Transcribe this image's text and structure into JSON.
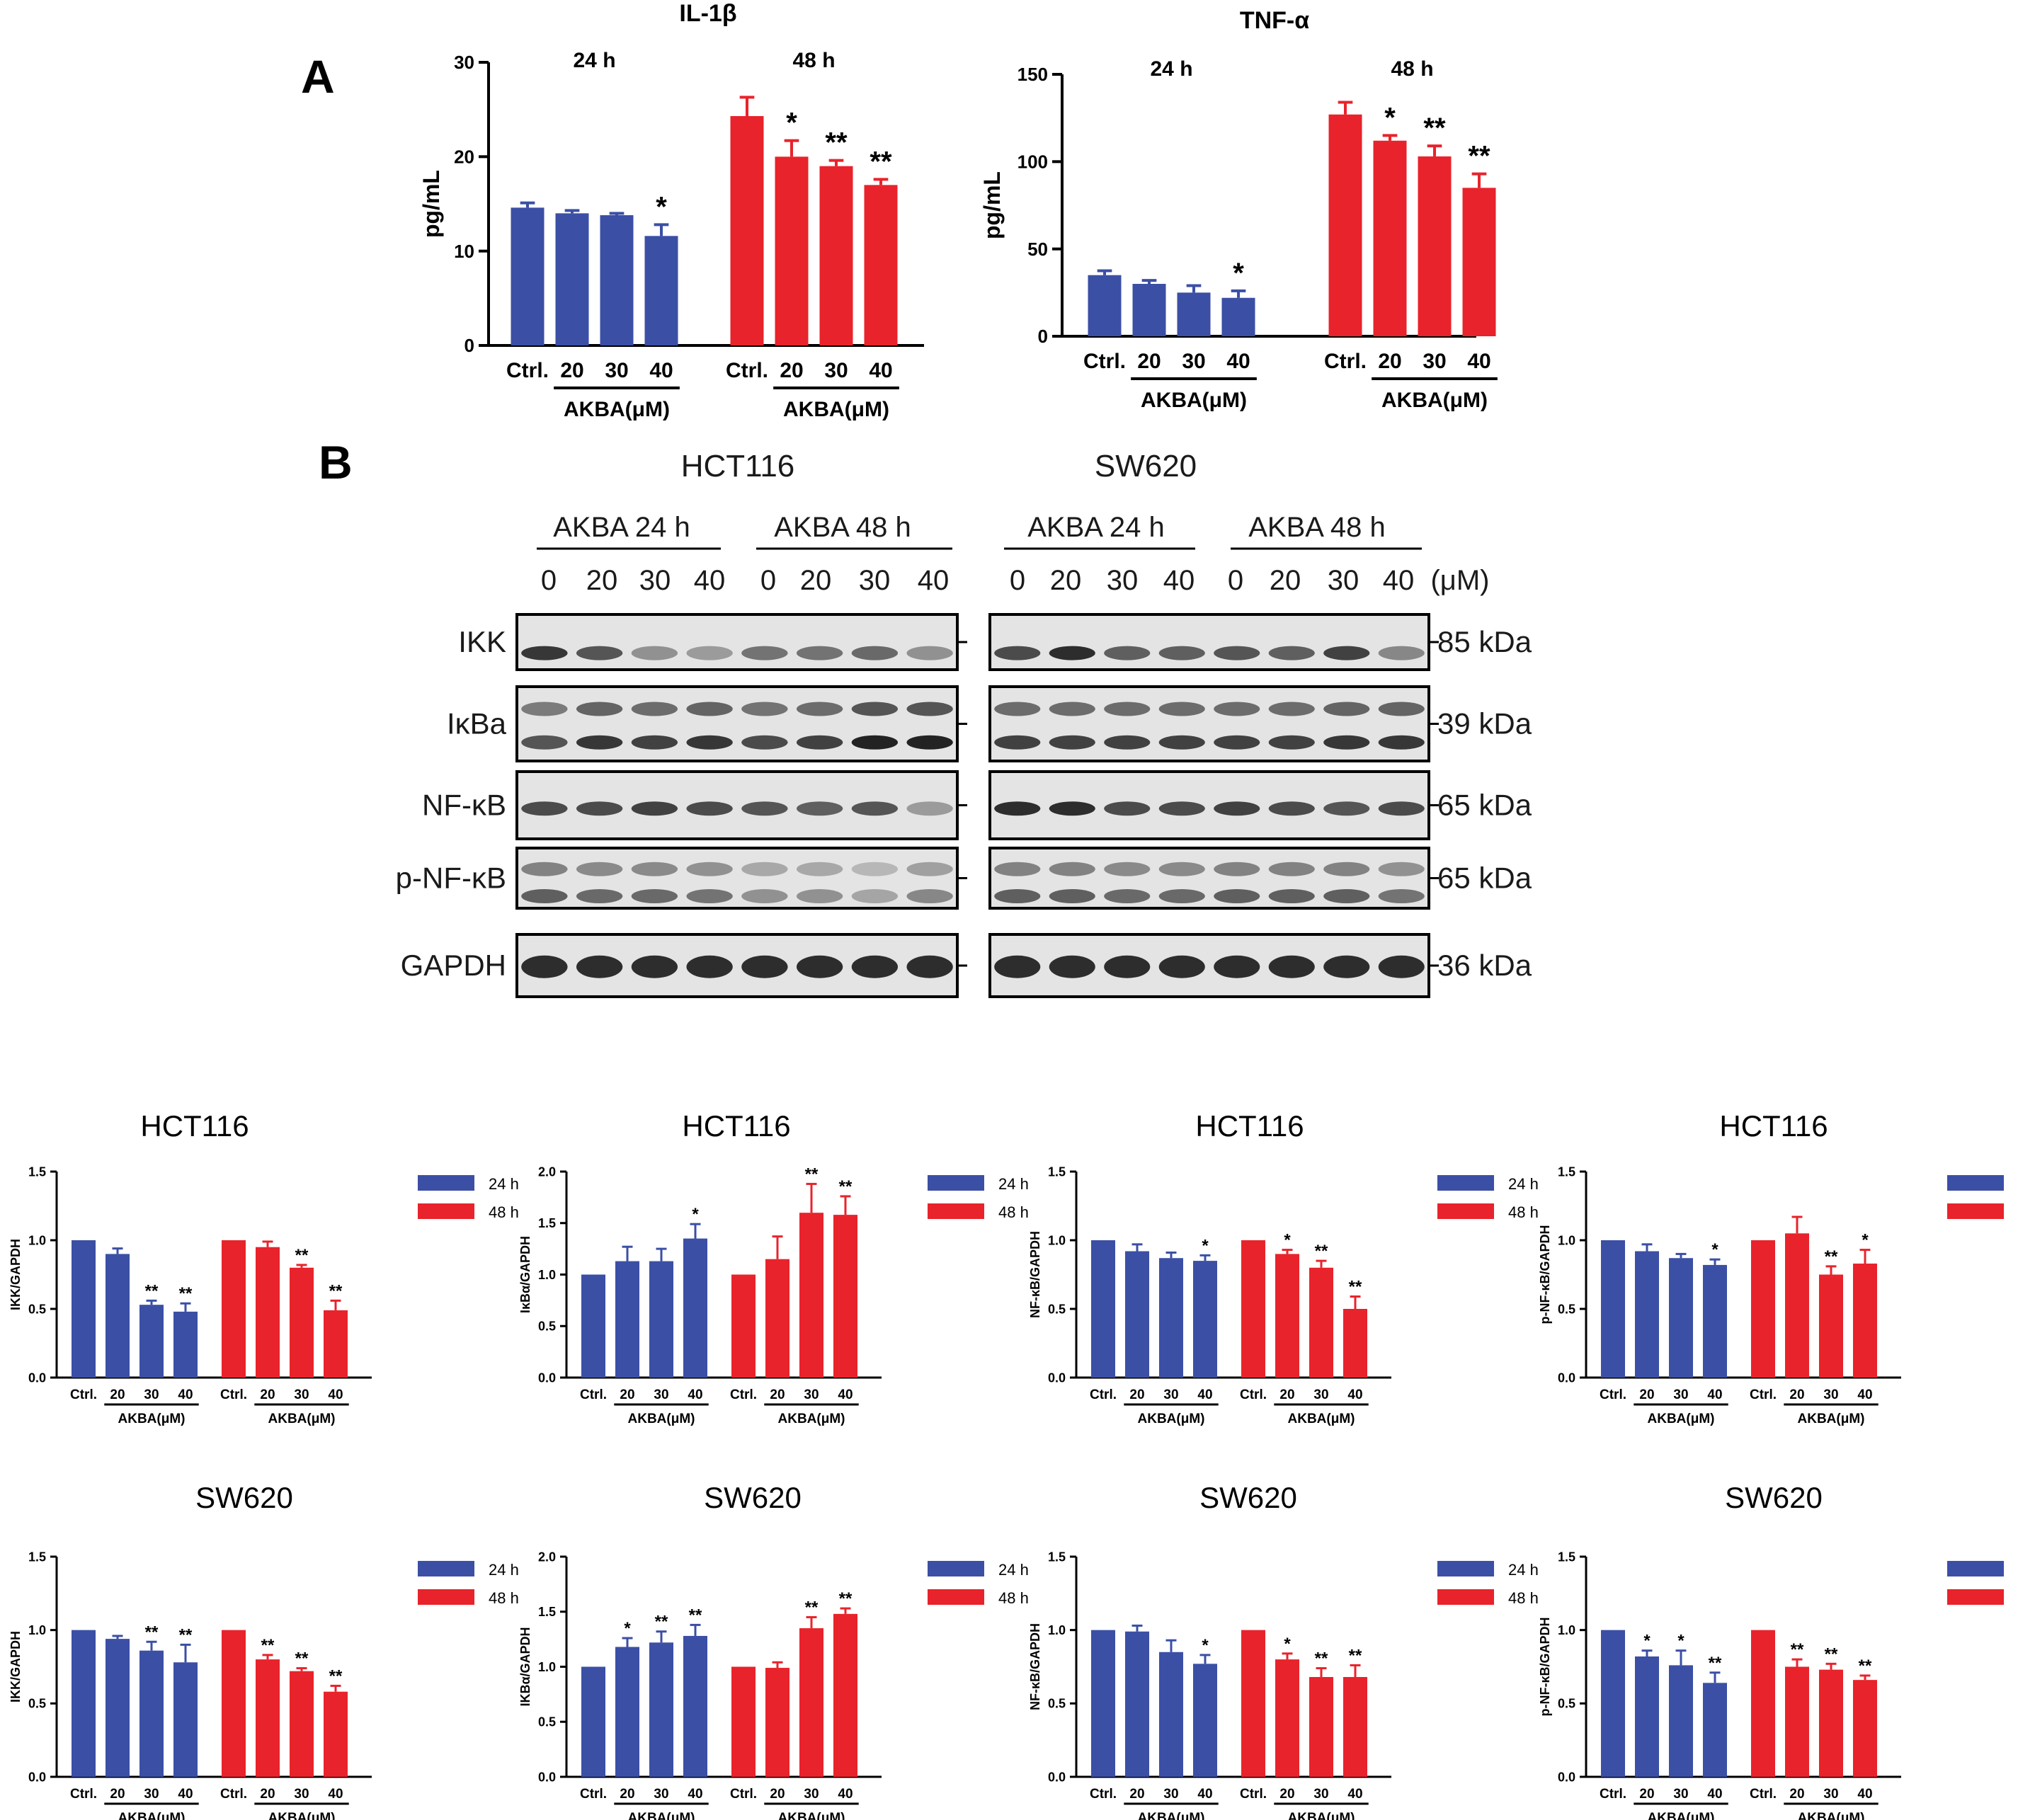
{
  "figure": {
    "panel_a_label": "A",
    "panel_b_label": "B",
    "colors": {
      "blue": "#3B4FA5",
      "red": "#E8232B",
      "axis": "#000000"
    }
  },
  "western_blot": {
    "cell_lines": [
      "HCT116",
      "SW620"
    ],
    "time_labels": [
      "AKBA 24 h",
      "AKBA 48 h"
    ],
    "lane_labels": [
      "0",
      "20",
      "30",
      "40",
      "0",
      "20",
      "30",
      "40"
    ],
    "unit": "(μM)",
    "proteins": [
      {
        "name": "IKK",
        "kda": "85 kDa"
      },
      {
        "name": "IκBa",
        "kda": "39 kDa"
      },
      {
        "name": "NF-κB",
        "kda": "65 kDa"
      },
      {
        "name": "p-NF-κB",
        "kda": "65 kDa"
      },
      {
        "name": "GAPDH",
        "kda": "36 kDa"
      }
    ]
  },
  "chart_data": [
    {
      "type": "bar",
      "id": "il1b",
      "title": "IL-1β",
      "ylabel": "pg/mL",
      "ylim": [
        0,
        30
      ],
      "yticks": [
        0,
        10,
        20,
        30
      ],
      "group_headers": [
        "24 h",
        "48 h"
      ],
      "categories": [
        "Ctrl.",
        "20",
        "30",
        "40"
      ],
      "group_axis_label": "AKBA(μM)",
      "series": [
        {
          "name": "24 h",
          "values": [
            14.6,
            14.0,
            13.8,
            11.6
          ],
          "errors": [
            0.5,
            0.3,
            0.2,
            1.2
          ],
          "sig": [
            "",
            "",
            "",
            "*"
          ]
        },
        {
          "name": "48 h",
          "values": [
            24.3,
            20.0,
            19.0,
            17.0
          ],
          "errors": [
            2.0,
            1.7,
            0.6,
            0.6
          ],
          "sig": [
            "",
            "*",
            "**",
            "**"
          ]
        }
      ]
    },
    {
      "type": "bar",
      "id": "tnfa",
      "title": "TNF-α",
      "ylabel": "pg/mL",
      "ylim": [
        0,
        150
      ],
      "yticks": [
        0,
        50,
        100,
        150
      ],
      "group_headers": [
        "24 h",
        "48 h"
      ],
      "categories": [
        "Ctrl.",
        "20",
        "30",
        "40"
      ],
      "group_axis_label": "AKBA(μM)",
      "series": [
        {
          "name": "24 h",
          "values": [
            35,
            30,
            25,
            22
          ],
          "errors": [
            2.5,
            2,
            4,
            4
          ],
          "sig": [
            "",
            "",
            "",
            "*"
          ]
        },
        {
          "name": "48 h",
          "values": [
            127,
            112,
            103,
            85
          ],
          "errors": [
            7,
            3,
            6,
            8
          ],
          "sig": [
            "",
            "*",
            "**",
            "**"
          ]
        }
      ]
    },
    {
      "type": "bar",
      "id": "hct_ikk",
      "title": "HCT116",
      "ylabel": "IKK/GAPDH",
      "ylim": [
        0,
        1.5
      ],
      "yticks": [
        "0.0",
        "0.5",
        "1.0",
        "1.5"
      ],
      "categories": [
        "Ctrl.",
        "20",
        "30",
        "40"
      ],
      "group_axis_label": "AKBA(μM)",
      "series": [
        {
          "name": "24 h",
          "values": [
            1.0,
            0.9,
            0.53,
            0.48
          ],
          "errors": [
            0,
            0.04,
            0.03,
            0.06
          ],
          "sig": [
            "",
            "",
            "**",
            "**"
          ]
        },
        {
          "name": "48 h",
          "values": [
            1.0,
            0.95,
            0.8,
            0.49
          ],
          "errors": [
            0,
            0.04,
            0.02,
            0.07
          ],
          "sig": [
            "",
            "",
            "**",
            "**"
          ]
        }
      ]
    },
    {
      "type": "bar",
      "id": "hct_ikba",
      "title": "HCT116",
      "ylabel": "IκBα/GAPDH",
      "ylim": [
        0,
        2.0
      ],
      "yticks": [
        "0.0",
        "0.5",
        "1.0",
        "1.5",
        "2.0"
      ],
      "categories": [
        "Ctrl.",
        "20",
        "30",
        "40"
      ],
      "group_axis_label": "AKBA(μM)",
      "series": [
        {
          "name": "24 h",
          "values": [
            1.0,
            1.13,
            1.13,
            1.35
          ],
          "errors": [
            0,
            0.14,
            0.12,
            0.14
          ],
          "sig": [
            "",
            "",
            "",
            "*"
          ]
        },
        {
          "name": "48 h",
          "values": [
            1.0,
            1.15,
            1.6,
            1.58
          ],
          "errors": [
            0,
            0.22,
            0.28,
            0.18
          ],
          "sig": [
            "",
            "",
            "**",
            "**"
          ]
        }
      ]
    },
    {
      "type": "bar",
      "id": "hct_nfkb",
      "title": "HCT116",
      "ylabel": "NF-κB/GAPDH",
      "ylim": [
        0,
        1.5
      ],
      "yticks": [
        "0.0",
        "0.5",
        "1.0",
        "1.5"
      ],
      "categories": [
        "Ctrl.",
        "20",
        "30",
        "40"
      ],
      "group_axis_label": "AKBA(μM)",
      "series": [
        {
          "name": "24 h",
          "values": [
            1.0,
            0.92,
            0.87,
            0.85
          ],
          "errors": [
            0,
            0.05,
            0.04,
            0.04
          ],
          "sig": [
            "",
            "",
            "",
            "*"
          ]
        },
        {
          "name": "48 h",
          "values": [
            1.0,
            0.9,
            0.8,
            0.5
          ],
          "errors": [
            0,
            0.03,
            0.05,
            0.09
          ],
          "sig": [
            "",
            "*",
            "**",
            "**"
          ]
        }
      ]
    },
    {
      "type": "bar",
      "id": "hct_pnfkb",
      "title": "HCT116",
      "ylabel": "p-NF-κB/GAPDH",
      "ylim": [
        0,
        1.5
      ],
      "yticks": [
        "0.0",
        "0.5",
        "1.0",
        "1.5"
      ],
      "categories": [
        "Ctrl.",
        "20",
        "30",
        "40"
      ],
      "group_axis_label": "AKBA(μM)",
      "series": [
        {
          "name": "24 h",
          "values": [
            1.0,
            0.92,
            0.87,
            0.82
          ],
          "errors": [
            0,
            0.05,
            0.03,
            0.04
          ],
          "sig": [
            "",
            "",
            "",
            "*"
          ]
        },
        {
          "name": "48 h",
          "values": [
            1.0,
            1.05,
            0.75,
            0.83
          ],
          "errors": [
            0,
            0.12,
            0.06,
            0.1
          ],
          "sig": [
            "",
            "",
            "**",
            "*"
          ]
        }
      ]
    },
    {
      "type": "bar",
      "id": "sw_ikk",
      "title": "SW620",
      "ylabel": "IKK/GAPDH",
      "ylim": [
        0,
        1.5
      ],
      "yticks": [
        "0.0",
        "0.5",
        "1.0",
        "1.5"
      ],
      "categories": [
        "Ctrl.",
        "20",
        "30",
        "40"
      ],
      "group_axis_label": "AKBA(μM)",
      "series": [
        {
          "name": "24 h",
          "values": [
            1.0,
            0.94,
            0.86,
            0.78
          ],
          "errors": [
            0,
            0.02,
            0.06,
            0.12
          ],
          "sig": [
            "",
            "",
            "**",
            "**"
          ]
        },
        {
          "name": "48 h",
          "values": [
            1.0,
            0.8,
            0.72,
            0.58
          ],
          "errors": [
            0,
            0.03,
            0.02,
            0.04
          ],
          "sig": [
            "",
            "**",
            "**",
            "**"
          ]
        }
      ]
    },
    {
      "type": "bar",
      "id": "sw_ikba",
      "title": "SW620",
      "ylabel": "IKBα/GAPDH",
      "ylim": [
        0,
        2.0
      ],
      "yticks": [
        "0.0",
        "0.5",
        "1.0",
        "1.5",
        "2.0"
      ],
      "categories": [
        "Ctrl.",
        "20",
        "30",
        "40"
      ],
      "group_axis_label": "AKBA(μM)",
      "series": [
        {
          "name": "24 h",
          "values": [
            1.0,
            1.18,
            1.22,
            1.28
          ],
          "errors": [
            0,
            0.08,
            0.1,
            0.1
          ],
          "sig": [
            "",
            "*",
            "**",
            "**"
          ]
        },
        {
          "name": "48 h",
          "values": [
            1.0,
            0.99,
            1.35,
            1.48
          ],
          "errors": [
            0,
            0.05,
            0.1,
            0.05
          ],
          "sig": [
            "",
            "",
            "**",
            "**"
          ]
        }
      ]
    },
    {
      "type": "bar",
      "id": "sw_nfkb",
      "title": "SW620",
      "ylabel": "NF-κB/GAPDH",
      "ylim": [
        0,
        1.5
      ],
      "yticks": [
        "0.0",
        "0.5",
        "1.0",
        "1.5"
      ],
      "categories": [
        "Ctrl.",
        "20",
        "30",
        "40"
      ],
      "group_axis_label": "AKBA(μM)",
      "series": [
        {
          "name": "24 h",
          "values": [
            1.0,
            0.99,
            0.85,
            0.77
          ],
          "errors": [
            0,
            0.04,
            0.08,
            0.06
          ],
          "sig": [
            "",
            "",
            "",
            "*"
          ]
        },
        {
          "name": "48 h",
          "values": [
            1.0,
            0.8,
            0.68,
            0.68
          ],
          "errors": [
            0,
            0.04,
            0.06,
            0.08
          ],
          "sig": [
            "",
            "*",
            "**",
            "**"
          ]
        }
      ]
    },
    {
      "type": "bar",
      "id": "sw_pnfkb",
      "title": "SW620",
      "ylabel": "p-NF-κB/GAPDH",
      "ylim": [
        0,
        1.5
      ],
      "yticks": [
        "0.0",
        "0.5",
        "1.0",
        "1.5"
      ],
      "categories": [
        "Ctrl.",
        "20",
        "30",
        "40"
      ],
      "group_axis_label": "AKBA(μM)",
      "series": [
        {
          "name": "24 h",
          "values": [
            1.0,
            0.82,
            0.76,
            0.64
          ],
          "errors": [
            0,
            0.04,
            0.1,
            0.07
          ],
          "sig": [
            "",
            "*",
            "*",
            "**"
          ]
        },
        {
          "name": "48 h",
          "values": [
            1.0,
            0.75,
            0.73,
            0.66
          ],
          "errors": [
            0,
            0.05,
            0.04,
            0.03
          ],
          "sig": [
            "",
            "**",
            "**",
            "**"
          ]
        }
      ]
    }
  ]
}
